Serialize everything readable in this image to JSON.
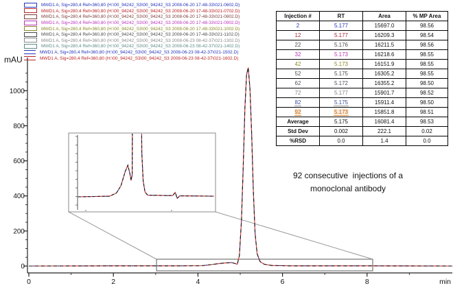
{
  "axes": {
    "y_unit": "mAU",
    "x_unit": "min",
    "y_major_ticks": [
      0,
      200,
      400,
      600,
      800,
      1000
    ],
    "y_minor_step": 50,
    "y_minor_max": 1100,
    "x_major_ticks": [
      0,
      2,
      4,
      6,
      8
    ],
    "x_minor_ticks": [
      1,
      3,
      5,
      7,
      9
    ]
  },
  "legend": {
    "entries": [
      {
        "label": "MWD1 A, Sig=280,4 Ref=360,80 (H:\\00_94242_S3\\00_94242_S3 2008-06-20 17-48-33\\021-0602.D)",
        "color": "#2233bb",
        "icon": "box"
      },
      {
        "label": "MWD1 A, Sig=280,4 Ref=360,80 (H:\\00_94242_S3\\00_94242_S3 2008-06-20 17-48-33\\021-0702.D)",
        "color": "#bb2222",
        "icon": "box"
      },
      {
        "label": "MWD1 A, Sig=280,4 Ref=360,80 (H:\\00_94242_S3\\00_94242_S3 2008-06-20 17-48-33\\021-0802.D)",
        "color": "#7a3b3b",
        "icon": "box"
      },
      {
        "label": "MWD1 A, Sig=280,4 Ref=360,80 (H:\\00_94242_S3\\00_94242_S3 2008-06-20 17-48-33\\021-0902.D)",
        "color": "#bb33bb",
        "icon": "box"
      },
      {
        "label": "MWD1 A, Sig=280,4 Ref=360,80 (H:\\00_94242_S3\\00_94242_S3 2008-06-20 17-48-33\\021-1002.D)",
        "color": "#8a8a2a",
        "icon": "box"
      },
      {
        "label": "MWD1 A, Sig=280,4 Ref=360,80 (H:\\00_94242_S3\\00_94242_S3 2008-06-20 17-48-33\\021-1102.D)",
        "color": "#4a4a4a",
        "icon": "box"
      },
      {
        "label": "MWD1 A, Sig=280,4 Ref=360,80 (H:\\00_94242_S3\\00_94242_S3 2008-06-23 08-42-37\\021-1302.D)",
        "color": "#8a8a8a",
        "icon": "box"
      },
      {
        "label": "MWD1 A, Sig=280,4 Ref=360,80 (H:\\00_94242_S3\\00_94242_S3 2008-06-23 08-42-37\\021-1402.D)",
        "color": "#5e8a8a",
        "icon": "box"
      },
      {
        "label": "MWD1 A, Sig=280,4 Ref=360,80 (H:\\00_94242_S3\\00_94242_S3 2008-06-23 08-42-37\\021-1502.D)",
        "color": "#2233bb",
        "icon": "lines"
      },
      {
        "label": "MWD1 A, Sig=280,4 Ref=360,80 (H:\\00_94242_S3\\00_94242_S3 2008-06-23 08-42-37\\021-1602.D)",
        "color": "#bb2222",
        "icon": "lines"
      }
    ]
  },
  "table": {
    "headers": [
      "Injection #",
      "RT",
      "Area",
      "% MP Area"
    ],
    "rows": [
      {
        "injection": "2",
        "rt": "5.177",
        "area": "15697.0",
        "mp_area": "98.56",
        "color": "#2233bb",
        "style": "plain"
      },
      {
        "injection": "12",
        "rt": "5.177",
        "area": "16209.3",
        "mp_area": "98.54",
        "color": "#a02a3a",
        "style": "plain"
      },
      {
        "injection": "22",
        "rt": "5.176",
        "area": "16211.5",
        "mp_area": "98.56",
        "color": "#4a4a4a",
        "style": "plain"
      },
      {
        "injection": "32",
        "rt": "5.173",
        "area": "16218.6",
        "mp_area": "98.55",
        "color": "#b833b8",
        "style": "plain"
      },
      {
        "injection": "42",
        "rt": "5.173",
        "area": "16151.9",
        "mp_area": "98.55",
        "color": "#8a8a2a",
        "style": "plain"
      },
      {
        "injection": "52",
        "rt": "5.175",
        "area": "16305.2",
        "mp_area": "98.55",
        "color": "#4a4a4a",
        "style": "plain"
      },
      {
        "injection": "62",
        "rt": "5.172",
        "area": "16355.2",
        "mp_area": "98.50",
        "color": "#50505e",
        "style": "plain"
      },
      {
        "injection": "72",
        "rt": "5.177",
        "area": "15901.7",
        "mp_area": "98.52",
        "color": "#808080",
        "style": "plain"
      },
      {
        "injection": "82",
        "rt": "5.175",
        "area": "15911.4",
        "mp_area": "98.50",
        "color": "#3a4a9a",
        "style": "underline"
      },
      {
        "injection": "92",
        "rt": "5.173",
        "area": "15851.8",
        "mp_area": "98.51",
        "color": "#c05a10",
        "style": "highlight"
      }
    ],
    "summary_rows": [
      {
        "label": "Average",
        "rt": "5.175",
        "area": "16081.4",
        "mp_area": "98.53"
      },
      {
        "label": "Std Dev",
        "rt": "0.002",
        "area": "222.1",
        "mp_area": "0.02"
      },
      {
        "label": "%RSD",
        "rt": "0.0",
        "area": "1.4",
        "mp_area": "0.0"
      }
    ]
  },
  "annotation": {
    "line1": "92 consecutive  injections of a",
    "line2": "monoclonal antibody"
  },
  "chart_data": {
    "type": "line",
    "title": "Overlay of 92 consecutive injections of a monoclonal antibody (HPLC chromatogram, MWD1 A, Sig=280,4 Ref=360,80)",
    "xlabel": "min",
    "ylabel": "mAU",
    "xlim": [
      0,
      10.1
    ],
    "ylim": [
      -60,
      1180
    ],
    "grid": false,
    "legend_position": "top-left",
    "series_note": "10 overlaid chromatogram traces (every 10th injection: 2,12,22,32,42,52,62,72,82,92) are visually coincident; drawn as one multicolor dashed trace",
    "peak": {
      "rt_min": 5.175,
      "height_mau": 1130,
      "pre_peak_shoulder_mau": 20,
      "pre_peak_shoulder_rt_min": 4.8
    },
    "main_trace_points": [
      [
        0,
        0
      ],
      [
        2.0,
        1
      ],
      [
        3.5,
        1
      ],
      [
        4.1,
        2
      ],
      [
        4.3,
        8
      ],
      [
        4.5,
        14
      ],
      [
        4.65,
        18
      ],
      [
        4.8,
        20
      ],
      [
        4.88,
        14
      ],
      [
        4.93,
        10
      ],
      [
        4.98,
        60
      ],
      [
        5.03,
        260
      ],
      [
        5.07,
        560
      ],
      [
        5.11,
        900
      ],
      [
        5.15,
        1090
      ],
      [
        5.19,
        1132
      ],
      [
        5.23,
        1010
      ],
      [
        5.27,
        760
      ],
      [
        5.31,
        430
      ],
      [
        5.35,
        190
      ],
      [
        5.4,
        70
      ],
      [
        5.47,
        25
      ],
      [
        5.57,
        10
      ],
      [
        5.75,
        3
      ],
      [
        6.2,
        1
      ],
      [
        8.0,
        1
      ],
      [
        10.02,
        0
      ]
    ],
    "inset": {
      "description": "magnified view of the baseline region, clipped main peak",
      "x_range_min": [
        3.0,
        8.15
      ],
      "ylim_mau": [
        -5,
        20
      ],
      "points": [
        [
          3.02,
          0
        ],
        [
          4.2,
          0.2
        ],
        [
          4.45,
          1.2
        ],
        [
          4.62,
          3.5
        ],
        [
          4.78,
          8
        ],
        [
          4.88,
          10
        ],
        [
          4.95,
          7.5
        ],
        [
          5.0,
          5.2
        ],
        [
          5.04,
          7
        ],
        [
          5.07,
          60
        ],
        [
          5.36,
          60
        ],
        [
          5.4,
          14
        ],
        [
          5.45,
          5
        ],
        [
          5.52,
          1.5
        ],
        [
          5.62,
          0.5
        ],
        [
          6.4,
          0.4
        ],
        [
          6.55,
          0.4
        ],
        [
          6.65,
          1.4
        ],
        [
          6.72,
          -0.5
        ],
        [
          6.82,
          0.3
        ],
        [
          8.1,
          0.2
        ]
      ]
    },
    "colors": {
      "trace_red": "#d03030",
      "trace_black": "#151515",
      "trace_blue": "#2233bb",
      "axis": "#222222",
      "box_gray": "#808080"
    }
  }
}
